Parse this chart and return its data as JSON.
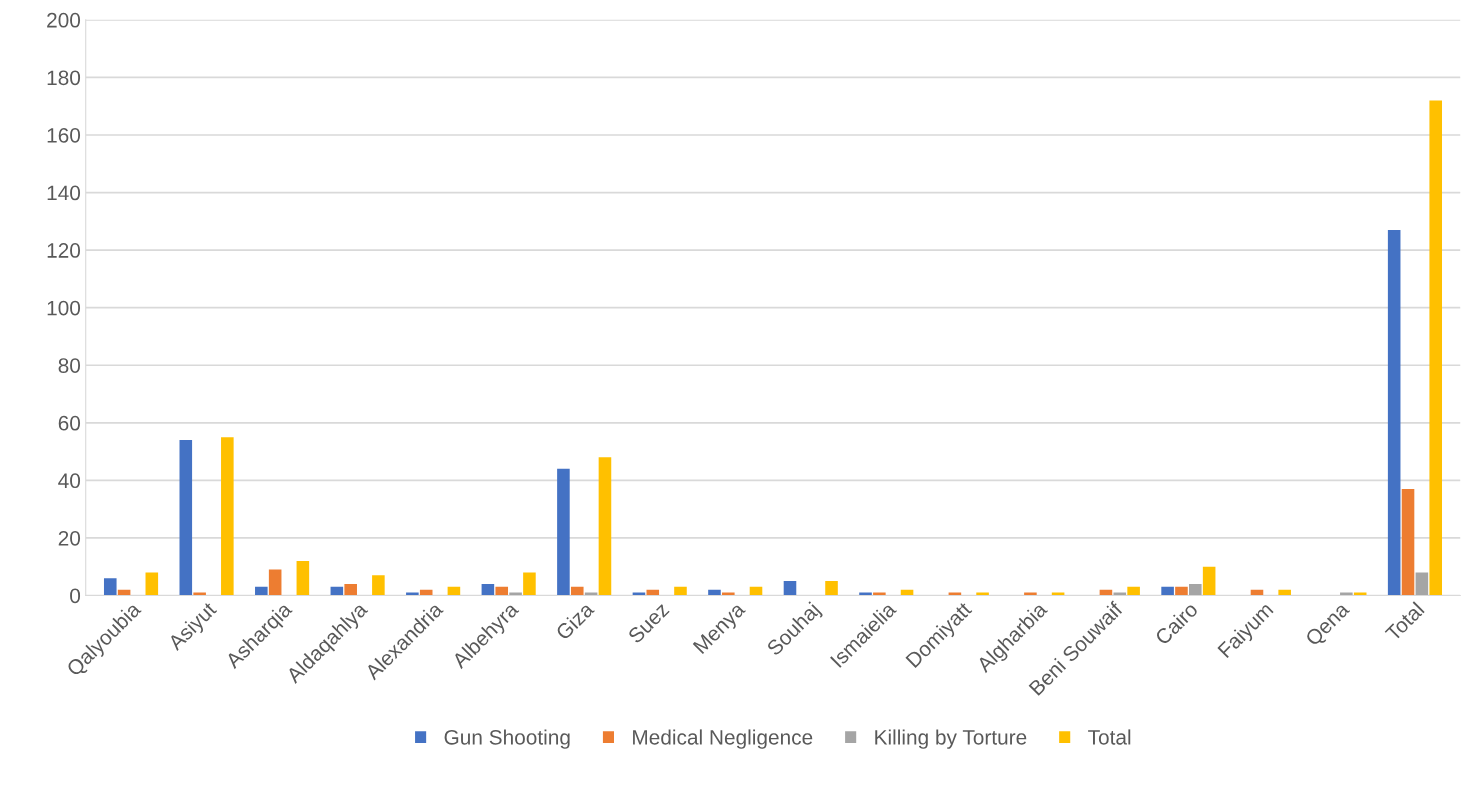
{
  "chart_data": {
    "type": "bar",
    "categories": [
      "Qalyoubia",
      "Asiyut",
      "Asharqia",
      "Aldaqahlya",
      "Alexandria",
      "Albehyra",
      "Giza",
      "Suez",
      "Menya",
      "Souhaj",
      "Ismaielia",
      "Domiyatt",
      "Algharbia",
      "Beni Souwaif",
      "Cairo",
      "Faiyum",
      "Qena",
      "Total"
    ],
    "series": [
      {
        "name": "Gun Shooting",
        "color": "#4472c4",
        "values": [
          6,
          54,
          3,
          3,
          1,
          4,
          44,
          1,
          2,
          5,
          1,
          0,
          0,
          0,
          3,
          0,
          0,
          127
        ]
      },
      {
        "name": "Medical Negligence",
        "color": "#ed7d31",
        "values": [
          2,
          1,
          9,
          4,
          2,
          3,
          3,
          2,
          1,
          0,
          1,
          1,
          1,
          2,
          3,
          2,
          0,
          37
        ]
      },
      {
        "name": "Killing by Torture",
        "color": "#a5a5a5",
        "values": [
          0,
          0,
          0,
          0,
          0,
          1,
          1,
          0,
          0,
          0,
          0,
          0,
          0,
          1,
          4,
          0,
          1,
          8
        ]
      },
      {
        "name": "Total",
        "color": "#ffc000",
        "values": [
          8,
          55,
          12,
          7,
          3,
          8,
          48,
          3,
          3,
          5,
          2,
          1,
          1,
          3,
          10,
          2,
          1,
          172
        ]
      }
    ],
    "ylim": [
      0,
      200
    ],
    "yticks": [
      0,
      20,
      40,
      60,
      80,
      100,
      120,
      140,
      160,
      180,
      200
    ],
    "grid": "y",
    "legend": "bottom"
  }
}
